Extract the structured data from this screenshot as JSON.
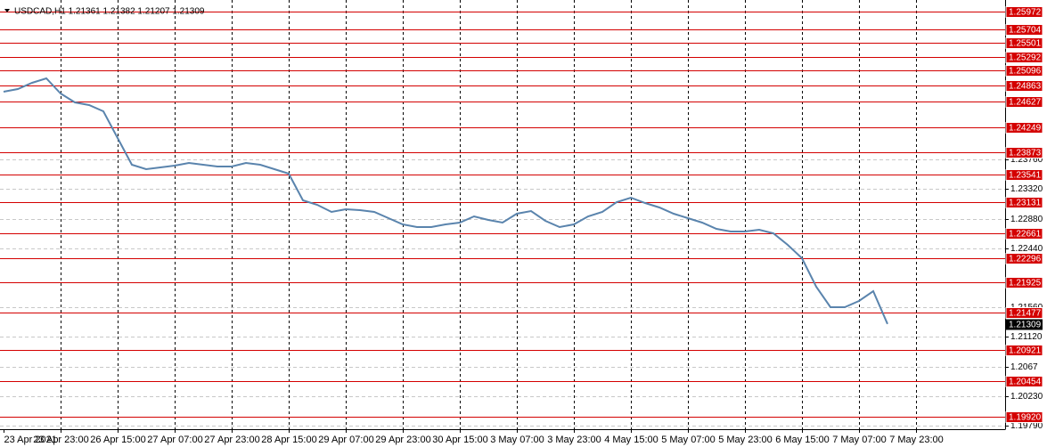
{
  "chart_data": {
    "type": "line",
    "title": "USDCAD,H1  1.21361 1.21382 1.21207 1.21309",
    "categories": [
      "23 Apr 2021",
      null,
      null,
      null,
      "23 Apr 23:00",
      null,
      null,
      null,
      "26 Apr 15:00",
      null,
      null,
      null,
      "27 Apr 07:00",
      null,
      null,
      null,
      "27 Apr 23:00",
      null,
      null,
      null,
      "28 Apr 15:00",
      null,
      null,
      null,
      "29 Apr 07:00",
      null,
      null,
      null,
      "29 Apr 23:00",
      null,
      null,
      null,
      "30 Apr 15:00",
      null,
      null,
      null,
      "3 May 07:00",
      null,
      null,
      null,
      "3 May 23:00",
      null,
      null,
      null,
      "4 May 15:00",
      null,
      null,
      null,
      "5 May 07:00",
      null,
      null,
      null,
      "5 May 23:00",
      null,
      null,
      null,
      "6 May 15:00",
      null,
      null,
      null,
      "7 May 07:00",
      null,
      null,
      null,
      "7 May 23:00",
      null,
      null,
      null,
      null,
      null,
      null
    ],
    "series": [
      {
        "name": "USDCAD,H1",
        "color": "#5a84ad",
        "values": [
          1.24775,
          1.24815,
          1.24908,
          1.24975,
          1.24749,
          1.24616,
          1.24576,
          1.24483,
          1.24084,
          1.23685,
          1.23619,
          1.23645,
          1.23672,
          1.23712,
          1.23685,
          1.23659,
          1.23659,
          1.23712,
          1.23685,
          1.23619,
          1.23553,
          1.23154,
          1.23087,
          1.22981,
          1.23021,
          1.23007,
          1.22981,
          1.22888,
          1.22795,
          1.22755,
          1.22755,
          1.22795,
          1.22821,
          1.22914,
          1.22861,
          1.22821,
          1.22954,
          1.22994,
          1.22848,
          1.22755,
          1.22795,
          1.22914,
          1.22981,
          1.23127,
          1.23193,
          1.23114,
          1.23047,
          1.22954,
          1.22888,
          1.22821,
          1.22728,
          1.22688,
          1.22688,
          1.22715,
          1.22661,
          1.22489,
          1.2229,
          1.21864,
          1.21558,
          1.21558,
          1.21651,
          1.21797,
          1.21309,
          null,
          null,
          null,
          null,
          null,
          null,
          null,
          null
        ]
      }
    ],
    "ylim": [
      1.19737,
      1.26145
    ],
    "yticks": [
      {
        "value": 1.2376,
        "label": "1.23760"
      },
      {
        "value": 1.2332,
        "label": "1.23320"
      },
      {
        "value": 1.2288,
        "label": "1.22880"
      },
      {
        "value": 1.2244,
        "label": "1.22440"
      },
      {
        "value": 1.2156,
        "label": "1.21560"
      },
      {
        "value": 1.2112,
        "label": "1.21120"
      },
      1.2067,
      {
        "value": 1.2023,
        "label": "1.20230"
      },
      {
        "value": 1.1979,
        "label": "1.19790"
      }
    ],
    "price_lines": [
      1.25972,
      1.25704,
      1.25501,
      1.25292,
      1.25096,
      1.24863,
      1.24627,
      1.24249,
      1.23873,
      1.23541,
      1.23131,
      1.22661,
      1.22296,
      1.21925,
      1.21477,
      1.20921,
      1.20454,
      {
        "value": 1.1992,
        "label": "1.19920"
      }
    ],
    "price_line_color": "#d40000",
    "current_price": 1.21309,
    "grid": true
  }
}
